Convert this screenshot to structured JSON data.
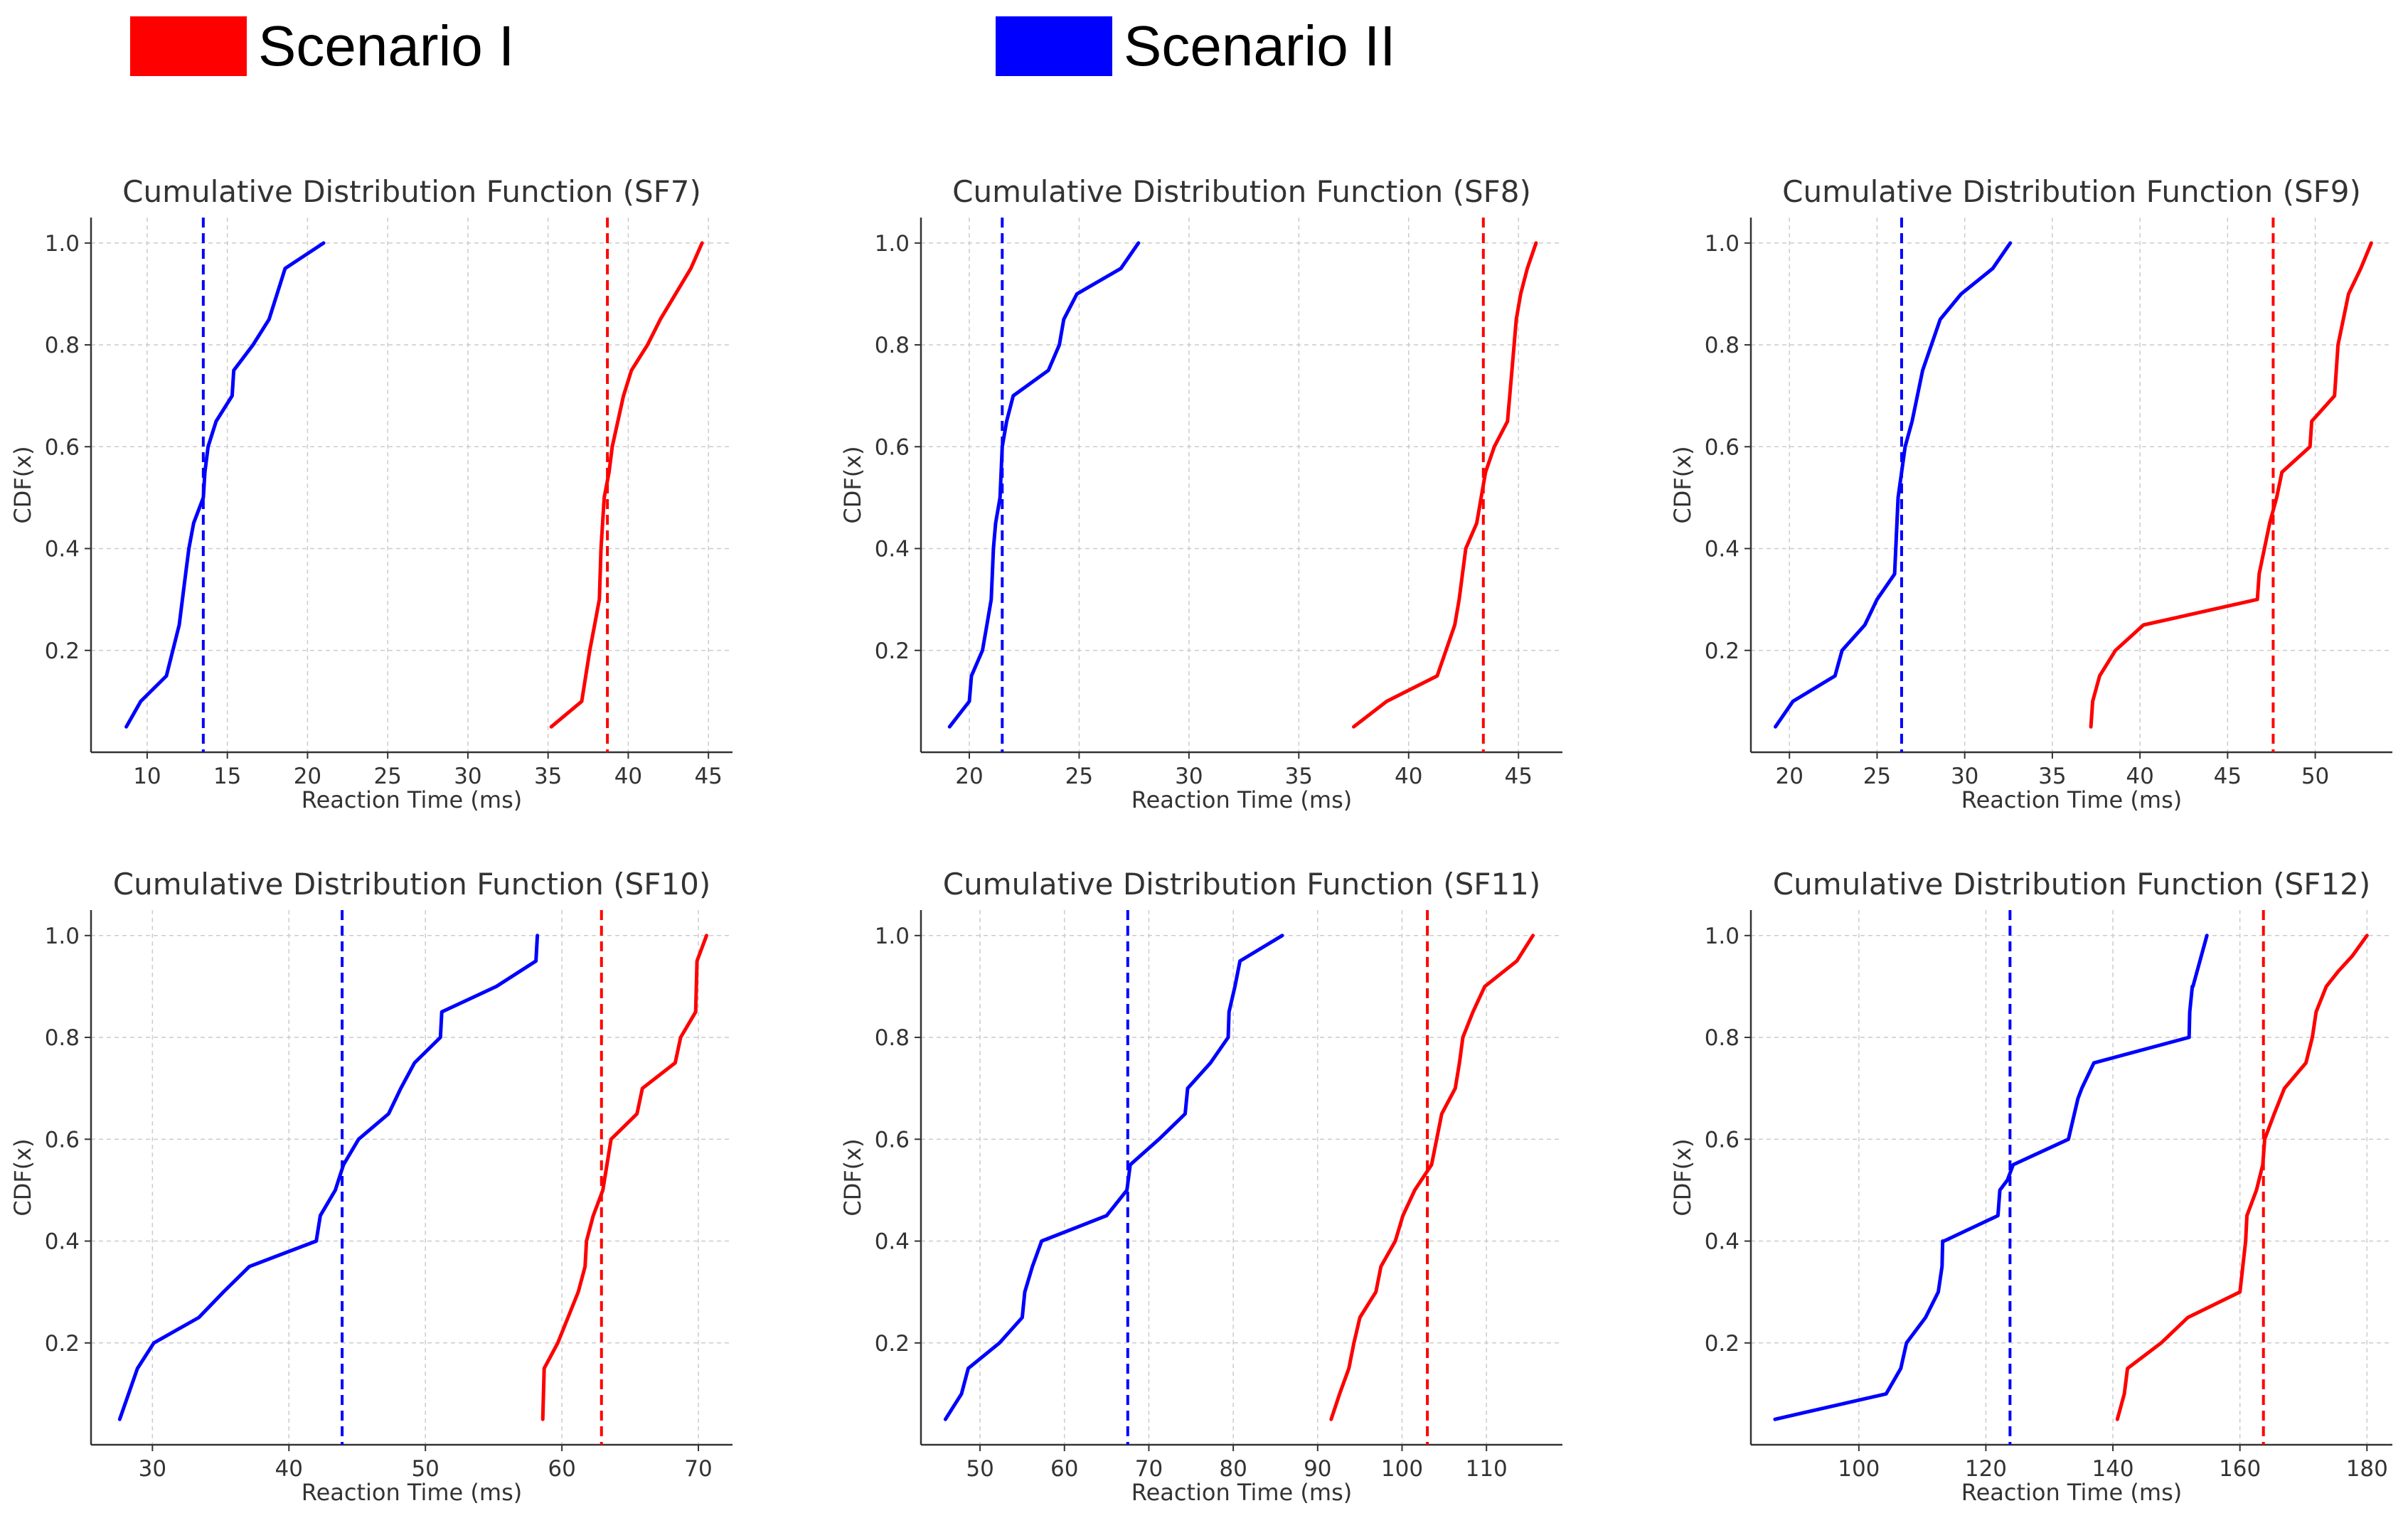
{
  "legend": {
    "items": [
      {
        "label": "Scenario I",
        "color": "#ff0000"
      },
      {
        "label": "Scenario II",
        "color": "#0000ff"
      }
    ]
  },
  "chart_data": [
    {
      "type": "line",
      "title": "Cumulative Distribution Function (SF7)",
      "xlabel": "Reaction Time (ms)",
      "ylabel": "CDF(x)",
      "xlim": [
        6.5,
        46.5
      ],
      "ylim": [
        0.0,
        1.05
      ],
      "xticks": [
        10,
        15,
        20,
        25,
        30,
        35,
        40,
        45
      ],
      "yticks": [
        0.2,
        0.4,
        0.6,
        0.8,
        1.0
      ],
      "grid": true,
      "series": [
        {
          "color": "#0000ff",
          "x": [
            8.7,
            9.6,
            11.2,
            12.0,
            12.2,
            12.4,
            12.6,
            12.9,
            13.5,
            13.6,
            13.8,
            14.3,
            15.3,
            15.4,
            16.6,
            17.6,
            18.6,
            21.0
          ],
          "y": [
            0.05,
            0.1,
            0.15,
            0.25,
            0.3,
            0.35,
            0.4,
            0.45,
            0.5,
            0.55,
            0.6,
            0.65,
            0.7,
            0.75,
            0.8,
            0.85,
            0.95,
            1.0
          ]
        },
        {
          "color": "#ff0000",
          "x": [
            35.2,
            37.1,
            37.6,
            37.9,
            38.2,
            38.3,
            38.5,
            38.8,
            39.0,
            39.7,
            40.2,
            41.2,
            42.0,
            43.9,
            44.6
          ],
          "y": [
            0.05,
            0.1,
            0.2,
            0.25,
            0.3,
            0.4,
            0.5,
            0.55,
            0.6,
            0.7,
            0.75,
            0.8,
            0.85,
            0.95,
            1.0
          ]
        }
      ],
      "vlines": [
        {
          "x": 13.5,
          "color": "#0000ff"
        },
        {
          "x": 38.7,
          "color": "#ff0000"
        }
      ]
    },
    {
      "type": "line",
      "title": "Cumulative Distribution Function (SF8)",
      "xlabel": "Reaction Time (ms)",
      "ylabel": "CDF(x)",
      "xlim": [
        17.8,
        47.0
      ],
      "ylim": [
        0.0,
        1.05
      ],
      "xticks": [
        20,
        25,
        30,
        35,
        40,
        45
      ],
      "yticks": [
        0.2,
        0.4,
        0.6,
        0.8,
        1.0
      ],
      "grid": true,
      "series": [
        {
          "color": "#0000ff",
          "x": [
            19.1,
            20.0,
            20.1,
            20.6,
            20.8,
            21.0,
            21.1,
            21.2,
            21.4,
            21.5,
            21.7,
            22.0,
            23.6,
            24.1,
            24.3,
            24.9,
            26.9,
            27.7
          ],
          "y": [
            0.05,
            0.1,
            0.15,
            0.2,
            0.25,
            0.3,
            0.4,
            0.45,
            0.5,
            0.6,
            0.65,
            0.7,
            0.75,
            0.8,
            0.85,
            0.9,
            0.95,
            1.0
          ]
        },
        {
          "color": "#ff0000",
          "x": [
            37.5,
            39.0,
            41.3,
            42.1,
            42.3,
            42.6,
            43.1,
            43.3,
            43.5,
            43.9,
            44.5,
            44.7,
            44.9,
            45.1,
            45.4,
            45.8
          ],
          "y": [
            0.05,
            0.1,
            0.15,
            0.25,
            0.3,
            0.4,
            0.45,
            0.5,
            0.55,
            0.6,
            0.65,
            0.75,
            0.85,
            0.9,
            0.95,
            1.0
          ]
        }
      ],
      "vlines": [
        {
          "x": 21.5,
          "color": "#0000ff"
        },
        {
          "x": 43.4,
          "color": "#ff0000"
        }
      ]
    },
    {
      "type": "line",
      "title": "Cumulative Distribution Function (SF9)",
      "xlabel": "Reaction Time (ms)",
      "ylabel": "CDF(x)",
      "xlim": [
        17.8,
        54.4
      ],
      "ylim": [
        0.0,
        1.05
      ],
      "xticks": [
        20,
        25,
        30,
        35,
        40,
        45,
        50
      ],
      "yticks": [
        0.2,
        0.4,
        0.6,
        0.8,
        1.0
      ],
      "grid": true,
      "series": [
        {
          "color": "#0000ff",
          "x": [
            19.2,
            20.2,
            22.6,
            23.0,
            24.3,
            25.0,
            26.0,
            26.2,
            26.6,
            27.0,
            27.6,
            28.6,
            29.8,
            31.6,
            32.6
          ],
          "y": [
            0.05,
            0.1,
            0.15,
            0.2,
            0.25,
            0.3,
            0.35,
            0.5,
            0.6,
            0.65,
            0.75,
            0.85,
            0.9,
            0.95,
            1.0
          ]
        },
        {
          "color": "#ff0000",
          "x": [
            37.2,
            37.3,
            37.7,
            38.6,
            40.2,
            46.7,
            46.8,
            47.4,
            47.8,
            48.1,
            49.7,
            49.8,
            51.1,
            51.3,
            51.6,
            51.9,
            52.6,
            53.2
          ],
          "y": [
            0.05,
            0.1,
            0.15,
            0.2,
            0.25,
            0.3,
            0.35,
            0.45,
            0.5,
            0.55,
            0.6,
            0.65,
            0.7,
            0.8,
            0.85,
            0.9,
            0.95,
            1.0
          ]
        }
      ],
      "vlines": [
        {
          "x": 26.4,
          "color": "#0000ff"
        },
        {
          "x": 47.6,
          "color": "#ff0000"
        }
      ]
    },
    {
      "type": "line",
      "title": "Cumulative Distribution Function (SF10)",
      "xlabel": "Reaction Time (ms)",
      "ylabel": "CDF(x)",
      "xlim": [
        25.5,
        72.5
      ],
      "ylim": [
        0.0,
        1.05
      ],
      "xticks": [
        30,
        40,
        50,
        60,
        70
      ],
      "yticks": [
        0.2,
        0.4,
        0.6,
        0.8,
        1.0
      ],
      "grid": true,
      "series": [
        {
          "color": "#0000ff",
          "x": [
            27.6,
            28.9,
            30.1,
            33.4,
            35.2,
            37.1,
            42.0,
            42.3,
            43.4,
            44.0,
            45.1,
            47.3,
            48.2,
            49.2,
            51.1,
            51.2,
            55.2,
            58.1,
            58.2
          ],
          "y": [
            0.05,
            0.15,
            0.2,
            0.25,
            0.3,
            0.35,
            0.4,
            0.45,
            0.5,
            0.55,
            0.6,
            0.65,
            0.7,
            0.75,
            0.8,
            0.85,
            0.9,
            0.95,
            1.0
          ]
        },
        {
          "color": "#ff0000",
          "x": [
            58.6,
            58.7,
            59.7,
            61.2,
            61.7,
            61.8,
            62.3,
            63.0,
            63.6,
            65.5,
            65.9,
            68.3,
            68.7,
            69.8,
            69.9,
            70.6
          ],
          "y": [
            0.05,
            0.15,
            0.2,
            0.3,
            0.35,
            0.4,
            0.45,
            0.5,
            0.6,
            0.65,
            0.7,
            0.75,
            0.8,
            0.85,
            0.95,
            1.0
          ]
        }
      ],
      "vlines": [
        {
          "x": 43.9,
          "color": "#0000ff"
        },
        {
          "x": 62.9,
          "color": "#ff0000"
        }
      ]
    },
    {
      "type": "line",
      "title": "Cumulative Distribution Function (SF11)",
      "xlabel": "Reaction Time (ms)",
      "ylabel": "CDF(x)",
      "xlim": [
        43.0,
        119.0
      ],
      "ylim": [
        0.0,
        1.05
      ],
      "xticks": [
        50,
        60,
        70,
        80,
        90,
        100,
        110
      ],
      "yticks": [
        0.2,
        0.4,
        0.6,
        0.8,
        1.0
      ],
      "grid": true,
      "series": [
        {
          "color": "#0000ff",
          "x": [
            45.9,
            47.8,
            48.6,
            52.3,
            55.0,
            55.3,
            56.2,
            57.3,
            65.0,
            67.4,
            67.8,
            71.2,
            74.3,
            74.6,
            77.3,
            79.4,
            79.5,
            80.2,
            80.8,
            85.8
          ],
          "y": [
            0.05,
            0.1,
            0.15,
            0.2,
            0.25,
            0.3,
            0.35,
            0.4,
            0.45,
            0.5,
            0.55,
            0.6,
            0.65,
            0.7,
            0.75,
            0.8,
            0.85,
            0.9,
            0.95,
            1.0
          ]
        },
        {
          "color": "#ff0000",
          "x": [
            91.6,
            92.6,
            93.7,
            94.3,
            95.0,
            96.9,
            97.5,
            99.2,
            100.1,
            101.5,
            103.5,
            104.7,
            106.3,
            106.8,
            107.2,
            108.4,
            109.8,
            113.6,
            115.5
          ],
          "y": [
            0.05,
            0.1,
            0.15,
            0.2,
            0.25,
            0.3,
            0.35,
            0.4,
            0.45,
            0.5,
            0.55,
            0.65,
            0.7,
            0.75,
            0.8,
            0.85,
            0.9,
            0.95,
            1.0
          ]
        }
      ],
      "vlines": [
        {
          "x": 67.5,
          "color": "#0000ff"
        },
        {
          "x": 103.0,
          "color": "#ff0000"
        }
      ]
    },
    {
      "type": "line",
      "title": "Cumulative Distribution Function (SF12)",
      "xlabel": "Reaction Time (ms)",
      "ylabel": "CDF(x)",
      "xlim": [
        83.0,
        184.0
      ],
      "ylim": [
        0.0,
        1.05
      ],
      "xticks": [
        100,
        120,
        140,
        160,
        180
      ],
      "yticks": [
        0.2,
        0.4,
        0.6,
        0.8,
        1.0
      ],
      "grid": true,
      "series": [
        {
          "color": "#0000ff",
          "x": [
            86.8,
            104.3,
            106.6,
            107.5,
            110.5,
            112.5,
            113.1,
            113.2,
            113.4,
            121.9,
            122.2,
            123.4,
            124.3,
            133.0,
            134.5,
            135.1,
            137.0,
            152.0,
            152.1,
            152.5,
            152.6,
            154.8
          ],
          "y": [
            0.05,
            0.1,
            0.15,
            0.2,
            0.25,
            0.3,
            0.35,
            0.4,
            0.4,
            0.45,
            0.5,
            0.52,
            0.55,
            0.6,
            0.68,
            0.7,
            0.75,
            0.8,
            0.85,
            0.9,
            0.9,
            1.0
          ]
        },
        {
          "color": "#ff0000",
          "x": [
            140.7,
            141.8,
            142.3,
            147.6,
            151.8,
            160.0,
            160.9,
            161.1,
            162.6,
            163.6,
            163.9,
            165.4,
            167.0,
            170.4,
            171.4,
            172.0,
            173.6,
            175.5,
            177.7,
            180.0
          ],
          "y": [
            0.05,
            0.1,
            0.15,
            0.2,
            0.25,
            0.3,
            0.4,
            0.45,
            0.5,
            0.55,
            0.6,
            0.65,
            0.7,
            0.75,
            0.8,
            0.85,
            0.9,
            0.93,
            0.96,
            1.0
          ]
        }
      ],
      "vlines": [
        {
          "x": 123.8,
          "color": "#0000ff"
        },
        {
          "x": 163.7,
          "color": "#ff0000"
        }
      ]
    }
  ]
}
